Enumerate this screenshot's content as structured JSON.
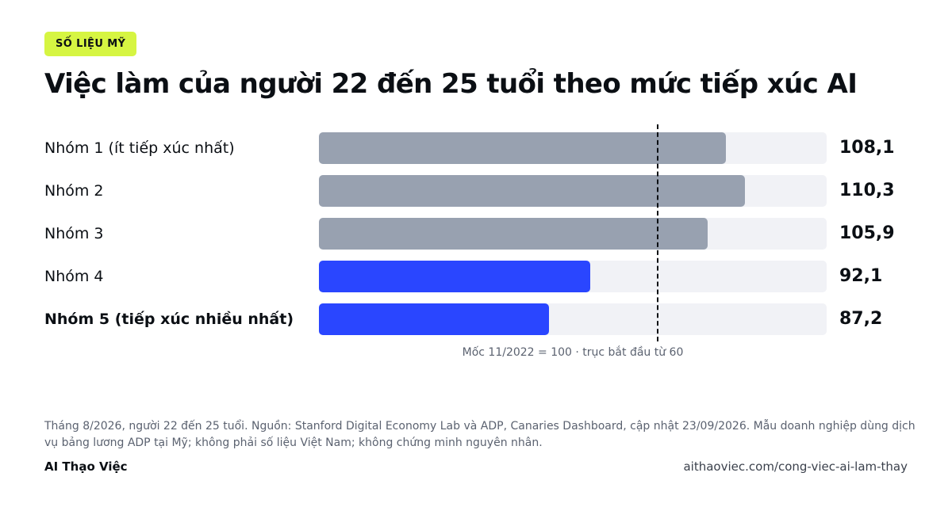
{
  "badge": "SỐ LIỆU MỸ",
  "chart_data": {
    "type": "bar",
    "orientation": "horizontal",
    "title": "Việc làm của người 22 đến 25 tuổi theo mức tiếp xúc AI",
    "categories": [
      "Nhóm 1 (ít tiếp xúc nhất)",
      "Nhóm 2",
      "Nhóm 3",
      "Nhóm 4",
      "Nhóm 5 (tiếp xúc nhiều nhất)"
    ],
    "values": [
      108.1,
      110.3,
      105.9,
      92.1,
      87.2
    ],
    "value_labels": [
      "108,1",
      "110,3",
      "105,9",
      "92,1",
      "87,2"
    ],
    "bold_categories": [
      false,
      false,
      false,
      false,
      true
    ],
    "bar_colors": [
      "#98a1b0",
      "#98a1b0",
      "#98a1b0",
      "#2a46ff",
      "#2a46ff"
    ],
    "track_color": "#f1f2f6",
    "reference_value": 100,
    "xlim": [
      60,
      120
    ],
    "note": "Mốc 11/2022 = 100 · trục bắt đầu từ 60"
  },
  "footer": {
    "source": "Tháng 8/2026, người 22 đến 25 tuổi. Nguồn: Stanford Digital Economy Lab và ADP, Canaries Dashboard, cập nhật 23/09/2026. Mẫu doanh nghiệp dùng dịch vụ bảng lương ADP tại Mỹ; không phải số liệu Việt Nam; không chứng minh nguyên nhân.",
    "brand": "AI Thạo Việc",
    "url": "aithaoviec.com/cong-viec-ai-lam-thay"
  }
}
